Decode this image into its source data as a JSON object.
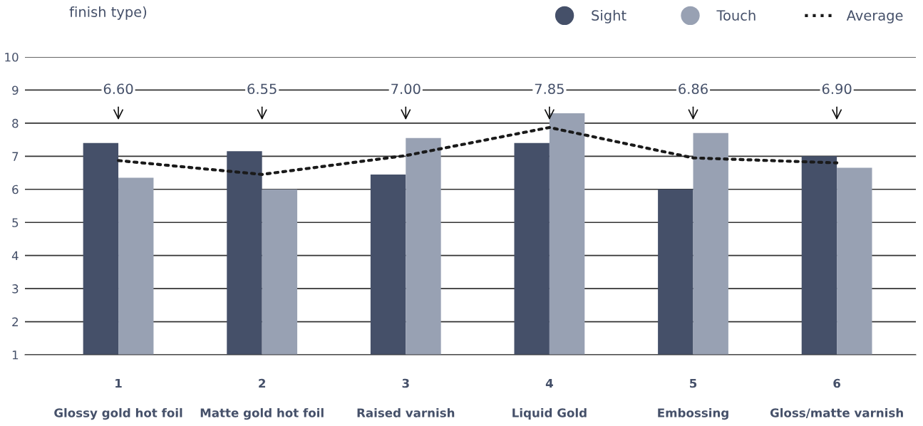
{
  "chart_data": {
    "type": "bar",
    "title": "finish type)",
    "categories": [
      "1\nGlossy gold hot foil",
      "2\nMatte gold hot foil",
      "3\nRaised varnish",
      "4\nLiquid Gold",
      "5\nEmbossing",
      "6\nGloss/matte varnish"
    ],
    "series": [
      {
        "name": "Sight",
        "color": "#455069",
        "values": [
          7.4,
          7.15,
          6.45,
          7.4,
          6.0,
          7.0
        ]
      },
      {
        "name": "Touch",
        "color": "#98a1b3",
        "values": [
          6.35,
          6.0,
          7.55,
          8.3,
          7.7,
          6.65
        ]
      },
      {
        "name": "Average",
        "type": "line",
        "color": "#1a1a1a",
        "line_style": "dotted",
        "values": [
          6.87,
          6.45,
          7.02,
          7.87,
          6.95,
          6.8
        ]
      }
    ],
    "annotations": [
      "6.60",
      "6.55",
      "7.00",
      "7.85",
      "6.86",
      "6.90"
    ],
    "ylim": [
      1,
      10
    ],
    "yticks": [
      1,
      2,
      3,
      4,
      5,
      6,
      7,
      8,
      9,
      10
    ],
    "grid": "y",
    "legend": "top right"
  }
}
